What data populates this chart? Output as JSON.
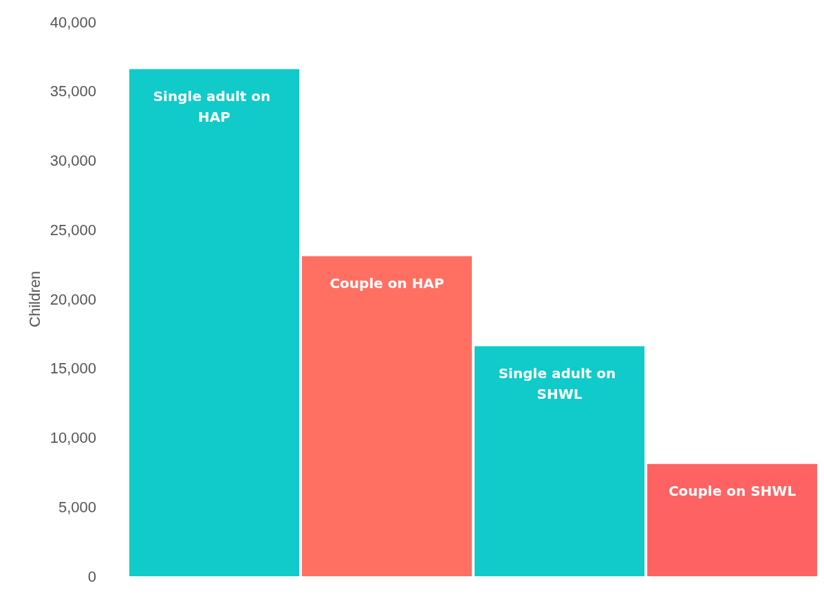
{
  "chart_data": {
    "type": "bar",
    "ylabel": "Children",
    "categories": [
      "Single adult on HAP",
      "Couple on HAP",
      "Single adult on SHWL",
      "Couple on SHWL"
    ],
    "values": [
      36600,
      23100,
      16600,
      8100
    ],
    "colors": [
      "#11caca",
      "#ff7063",
      "#11caca",
      "#ff6262"
    ],
    "ylim": [
      0,
      40000
    ],
    "yticks": [
      0,
      {
        "value": 5000,
        "label": "5,000"
      },
      {
        "value": 10000,
        "label": "10,000"
      },
      {
        "value": 15000,
        "label": "15,000"
      },
      {
        "value": 20000,
        "label": "20,000"
      },
      {
        "value": 25000,
        "label": "25,000"
      },
      {
        "value": 30000,
        "label": "30,000"
      },
      {
        "value": 35000,
        "label": "35,000"
      },
      {
        "value": 40000,
        "label": "40,000"
      }
    ],
    "grid": false,
    "tick_labels": "y"
  }
}
